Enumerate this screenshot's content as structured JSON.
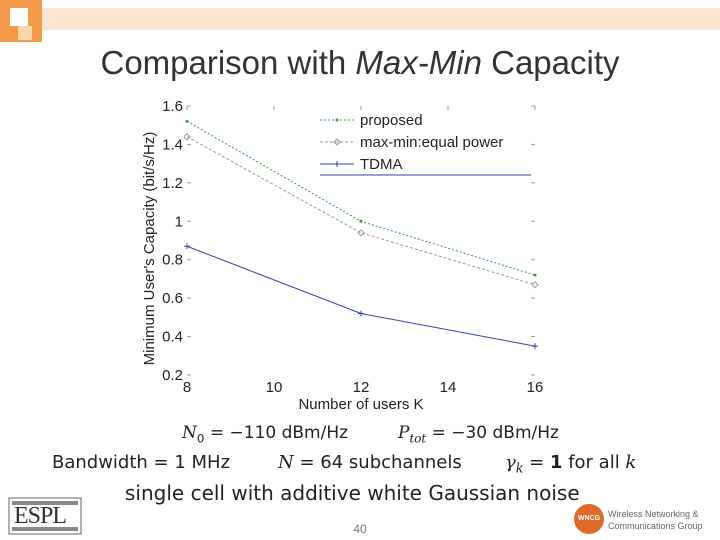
{
  "slide": {
    "title_plain": "Comparison with ",
    "title_italic": "Max-Min",
    "title_rest": " Capacity",
    "page_number": "40"
  },
  "params": {
    "n0": "N0 = −110 dBm/Hz",
    "ptot": "Ptot = −30 dBm/Hz",
    "bandwidth": "Bandwidth = 1 MHz",
    "subchannels": "N = 64 subchannels",
    "gamma": "γk = 1 for all k",
    "scenario": "single cell with additive white Gaussian noise"
  },
  "logos": {
    "espl": "ESPL",
    "wncg_badge": "WNCG",
    "wncg_line1": "Wireless Networking &",
    "wncg_line2": "Communications Group"
  },
  "chart_data": {
    "type": "line",
    "xlabel": "Number of users K",
    "ylabel": "Minimum User's Capacity (bit/s/Hz)",
    "xlim": [
      8,
      16
    ],
    "ylim": [
      0.2,
      1.6
    ],
    "xticks": [
      8,
      10,
      12,
      14,
      16
    ],
    "yticks": [
      0.2,
      0.4,
      0.6,
      0.8,
      1.0,
      1.2,
      1.4,
      1.6
    ],
    "ytick_labels": [
      "0.2",
      "0.4",
      "0.6",
      "0.8",
      "1",
      "1.2",
      "1.4",
      "1.6"
    ],
    "grid": false,
    "legend_position": "top-right",
    "x": [
      8,
      12,
      16
    ],
    "series": [
      {
        "name": "proposed",
        "values": [
          1.52,
          1.0,
          0.72
        ],
        "color": "#3a9a3a",
        "dash": "2,2",
        "marker": "dot"
      },
      {
        "name": "max-min:equal power",
        "values": [
          1.44,
          0.94,
          0.67
        ],
        "color": "#999999",
        "dash": "3,2",
        "marker": "diamond"
      },
      {
        "name": "TDMA",
        "values": [
          0.87,
          0.52,
          0.35
        ],
        "color": "#3344aa",
        "dash": "",
        "marker": "plus"
      }
    ]
  }
}
